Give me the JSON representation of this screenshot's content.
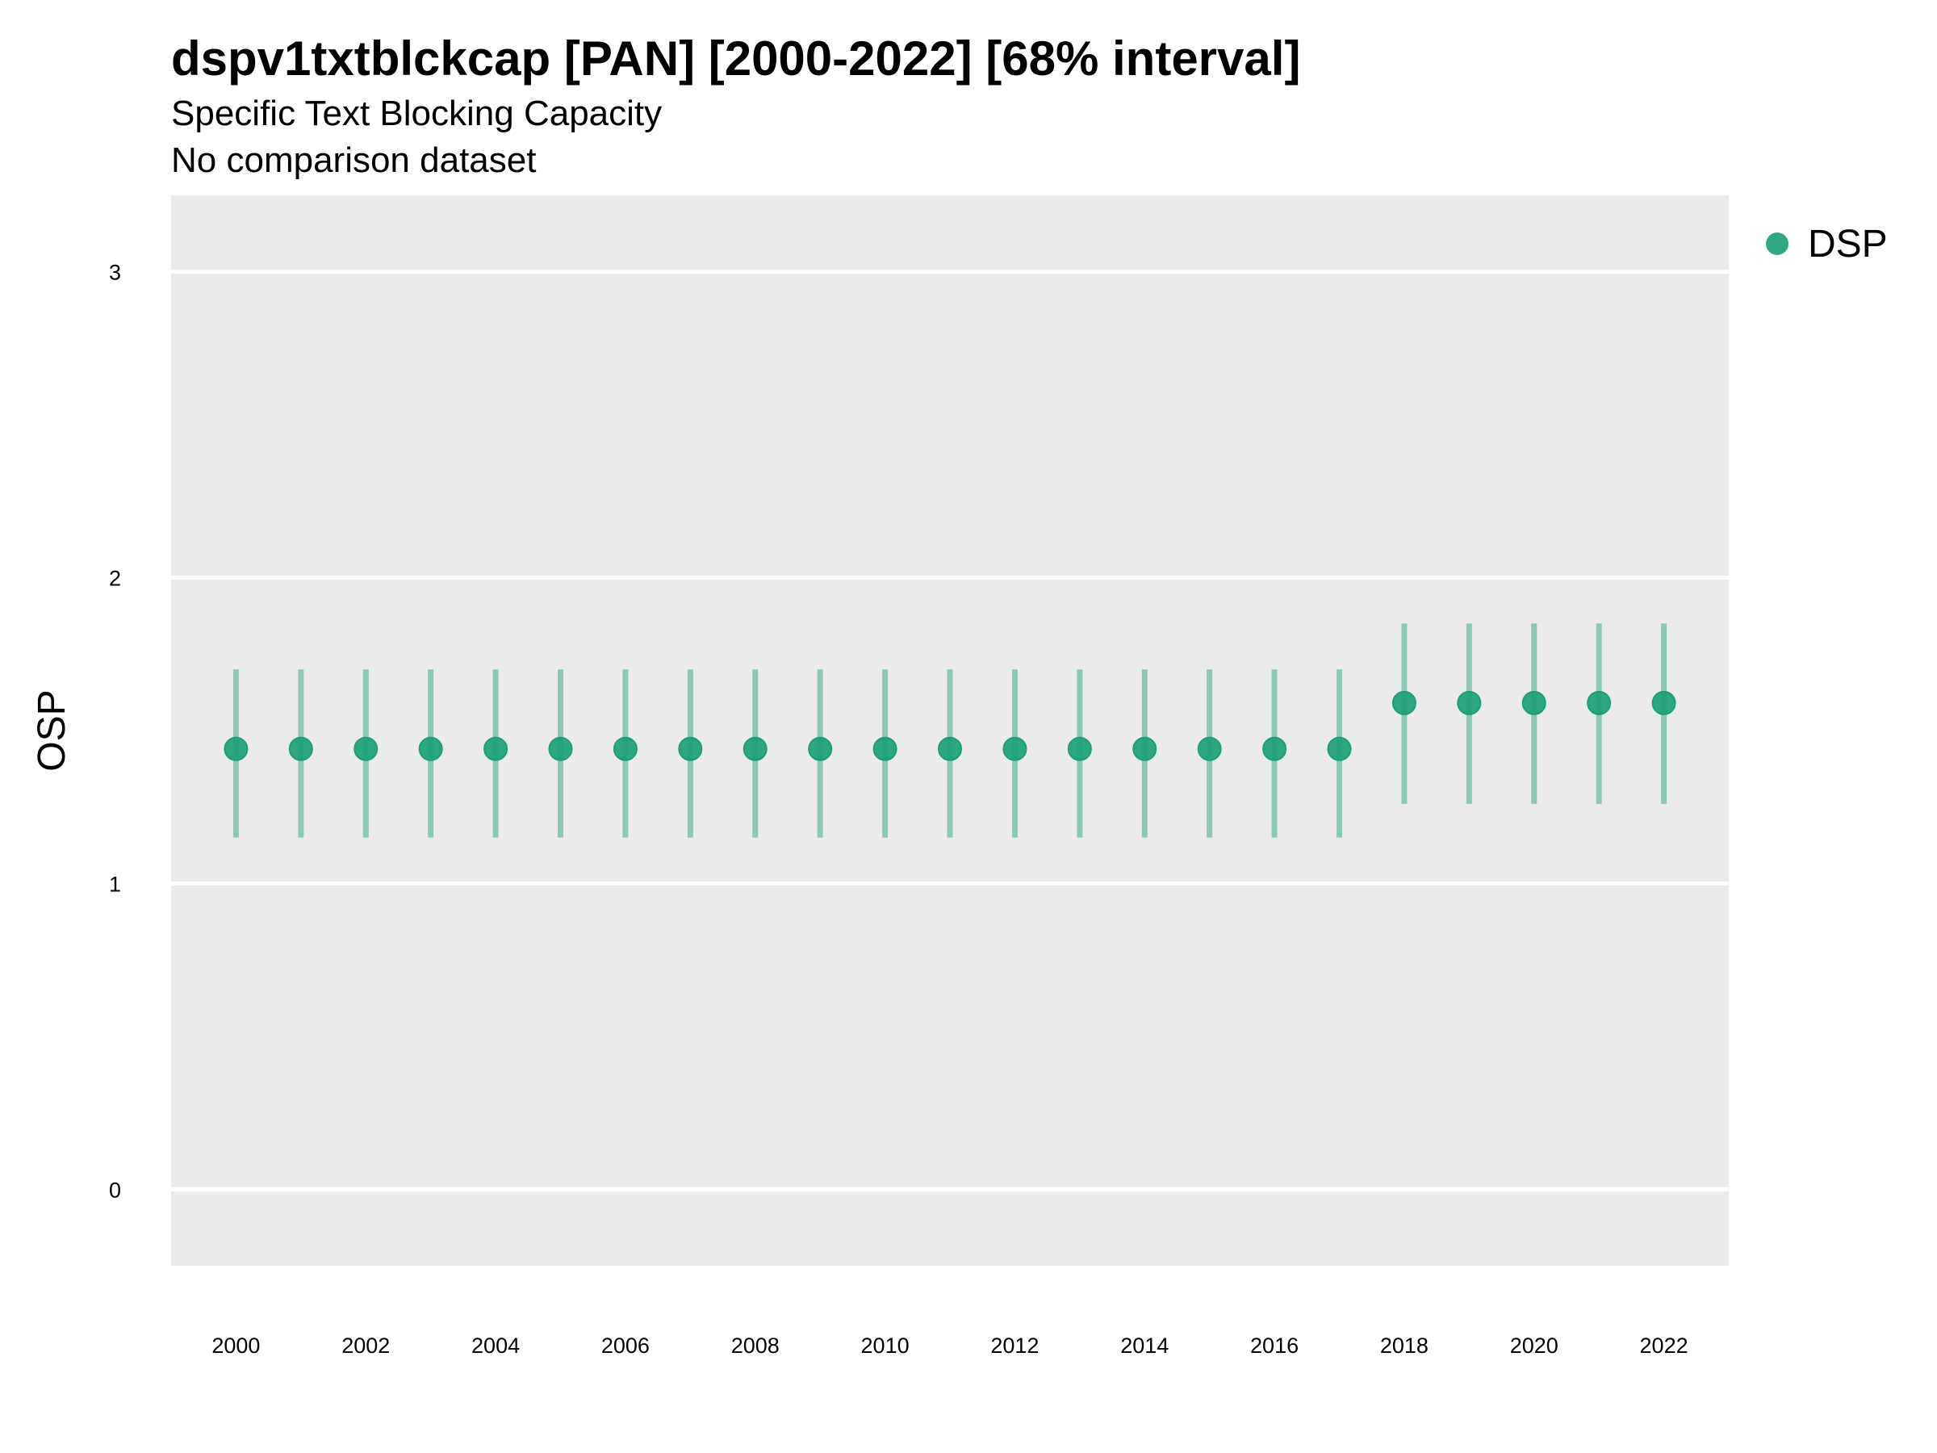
{
  "header": {
    "title": "dspv1txtblckcap [PAN] [2000-2022] [68% interval]",
    "subtitle": "Specific Text Blocking Capacity",
    "caption": "No comparison dataset"
  },
  "colors": {
    "series": "#1b9e77",
    "panel": "#ebebeb",
    "grid": "#ffffff"
  },
  "chart_data": {
    "type": "scatter",
    "title": "dspv1txtblckcap [PAN] [2000-2022] [68% interval]",
    "subtitle": "Specific Text Blocking Capacity",
    "xlabel": "",
    "ylabel": "OSP",
    "xlim": [
      1999,
      2023
    ],
    "ylim": [
      -0.25,
      3.25
    ],
    "x_ticks": [
      "2000",
      "2002",
      "2004",
      "2006",
      "2008",
      "2010",
      "2012",
      "2014",
      "2016",
      "2018",
      "2020",
      "2022"
    ],
    "y_ticks": [
      "0",
      "1",
      "2",
      "3"
    ],
    "grid": true,
    "legend_position": "top-right",
    "series": [
      {
        "name": "DSP",
        "x": [
          2000,
          2001,
          2002,
          2003,
          2004,
          2005,
          2006,
          2007,
          2008,
          2009,
          2010,
          2011,
          2012,
          2013,
          2014,
          2015,
          2016,
          2017,
          2018,
          2019,
          2020,
          2021,
          2022
        ],
        "y": [
          1.44,
          1.44,
          1.44,
          1.44,
          1.44,
          1.44,
          1.44,
          1.44,
          1.44,
          1.44,
          1.44,
          1.44,
          1.44,
          1.44,
          1.44,
          1.44,
          1.44,
          1.44,
          1.59,
          1.59,
          1.59,
          1.59,
          1.59
        ],
        "lower": [
          1.15,
          1.15,
          1.15,
          1.15,
          1.15,
          1.15,
          1.15,
          1.15,
          1.15,
          1.15,
          1.15,
          1.15,
          1.15,
          1.15,
          1.15,
          1.15,
          1.15,
          1.15,
          1.26,
          1.26,
          1.26,
          1.26,
          1.26
        ],
        "upper": [
          1.7,
          1.7,
          1.7,
          1.7,
          1.7,
          1.7,
          1.7,
          1.7,
          1.7,
          1.7,
          1.7,
          1.7,
          1.7,
          1.7,
          1.7,
          1.7,
          1.7,
          1.7,
          1.85,
          1.85,
          1.85,
          1.85,
          1.85
        ]
      }
    ]
  }
}
